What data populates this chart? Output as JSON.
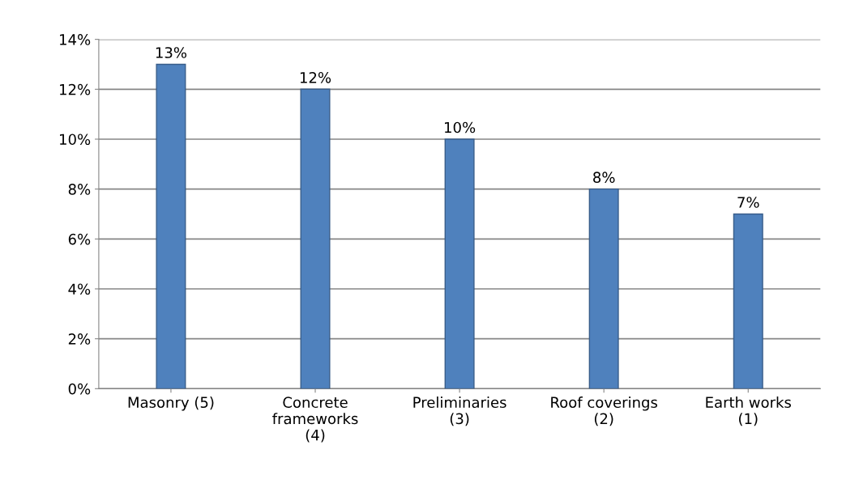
{
  "chart_data": {
    "type": "bar",
    "categories": [
      "Masonry (5)",
      "Concrete\nframeworks\n(4)",
      "Preliminaries\n(3)",
      "Roof coverings\n(2)",
      "Earth works\n(1)"
    ],
    "values": [
      13,
      12,
      10,
      8,
      7
    ],
    "value_labels": [
      "13%",
      "12%",
      "10%",
      "8%",
      "7%"
    ],
    "color": "#4f81bd",
    "ylim": [
      0,
      14
    ],
    "yticks": [
      {
        "value": 0,
        "label": "0%"
      },
      {
        "value": 2,
        "label": "2%"
      },
      {
        "value": 4,
        "label": "4%"
      },
      {
        "value": 6,
        "label": "6%"
      },
      {
        "value": 8,
        "label": "8%"
      },
      {
        "value": 10,
        "label": "10%"
      },
      {
        "value": 12,
        "label": "12%"
      },
      {
        "value": 14,
        "label": "14%"
      }
    ],
    "grid": "y"
  }
}
